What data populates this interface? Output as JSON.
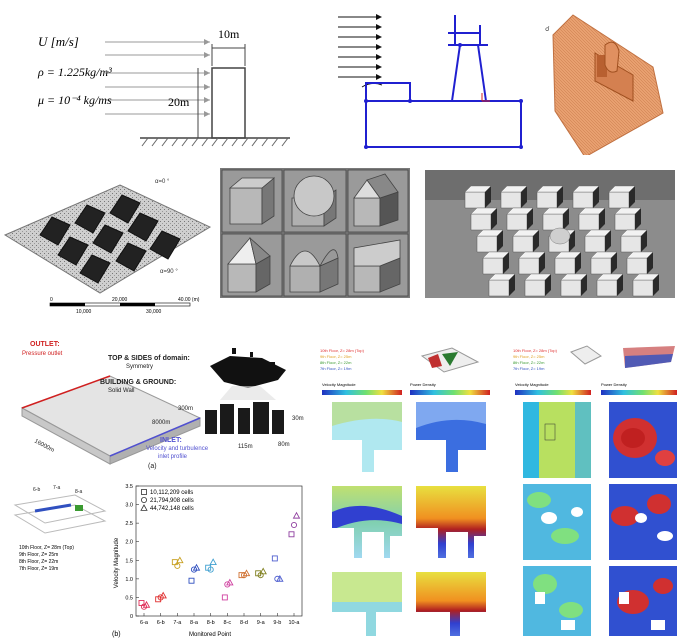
{
  "figure": {
    "fluid": {
      "velocity": "U [m/s]",
      "density": "ρ = 1.225kg/m³",
      "viscosity": "μ = 10⁻⁴ kg/ms",
      "width": "10m",
      "height": "20m"
    },
    "roof_arrays": {
      "angle_top": "α=0 °",
      "angle_bottom": "α=90 °",
      "scale_ticks": [
        "0",
        "20,000",
        "40.00 (m)"
      ],
      "scale_sub": [
        "10,000",
        "30,000"
      ]
    },
    "domain": {
      "outlet_title": "OUTLET:",
      "outlet_sub": "Pressure outlet",
      "top_title": "TOP & SIDES of domain:",
      "top_sub": "Symmetry",
      "ground_title": "BUILDING & GROUND:",
      "ground_sub": "Solid Wall",
      "inlet_title": "INLET:",
      "inlet_sub1": "Velocity and turbulence",
      "inlet_sub2": "inlet profile",
      "dim_length": "16000m",
      "dim_width": "8000m",
      "dim_height": "300m",
      "dim_b1": "115m",
      "dim_b2": "80m",
      "dim_b3": "30m",
      "label": "(a)"
    },
    "floors_legend": [
      "10th Floor, Z= 28m (Top)",
      "9th Floor, Z= 25m",
      "8th Floor, Z= 22m",
      "7th Floor, Z= 19m"
    ],
    "floors_colors": [
      "#e03030",
      "#e0a020",
      "#3a9a30",
      "#3050c0"
    ],
    "contour_labels": {
      "velocity": "Velocity Magnitude",
      "power": "Power Density"
    },
    "scatter_label": "(b)",
    "chart_data": {
      "type": "scatter",
      "xlabel": "Monitored Point",
      "ylabel": "Velocity Magnitude",
      "categories": [
        "6-a",
        "6-b",
        "7-a",
        "8-a",
        "8-b",
        "8-c",
        "8-d",
        "9-a",
        "9-b",
        "10-a"
      ],
      "ylim": [
        0,
        3.5
      ],
      "yticks": [
        "0",
        "0.5",
        "1.0",
        "1.5",
        "2.0",
        "2.5",
        "3.0",
        "3.5"
      ],
      "series": [
        {
          "name": "10,112,209 cells",
          "marker": "square",
          "values": [
            0.35,
            0.45,
            1.45,
            0.95,
            1.3,
            0.5,
            1.1,
            1.15,
            1.55,
            2.2
          ]
        },
        {
          "name": "21,794,908 cells",
          "marker": "circle",
          "values": [
            0.25,
            0.5,
            1.35,
            1.25,
            1.25,
            0.85,
            1.1,
            1.1,
            1.0,
            2.45
          ]
        },
        {
          "name": "44,742,148 cells",
          "marker": "triangle",
          "values": [
            0.3,
            0.55,
            1.5,
            1.3,
            1.45,
            0.9,
            1.15,
            1.2,
            1.0,
            2.7
          ]
        }
      ],
      "colors": [
        "#e0305a",
        "#e03030",
        "#c8a020",
        "#3050c0",
        "#40a0d0",
        "#d040a0",
        "#d07030",
        "#808020",
        "#5060d0",
        "#9040a0"
      ]
    }
  }
}
